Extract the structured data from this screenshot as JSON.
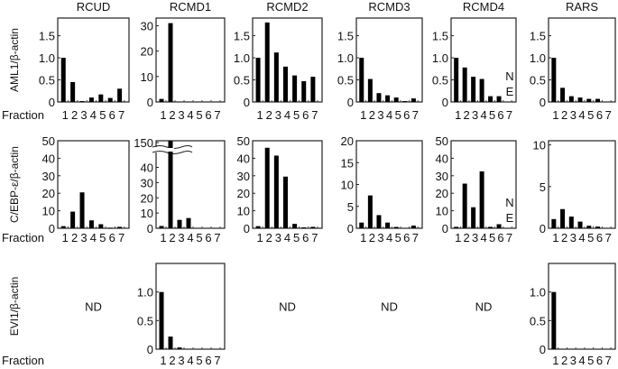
{
  "fraction_label": "Fraction",
  "columns": [
    "RCUD",
    "RCMD1",
    "RCMD2",
    "RCMD3",
    "RCMD4",
    "RARS"
  ],
  "rows": [
    "AML1/β-actin",
    "C/EBP-ε/β-actin",
    "EVI1/β-actin"
  ],
  "bar_color": "#000000",
  "chart_data": [
    {
      "type": "bar",
      "row": 0,
      "col": 0,
      "title": "RCUD",
      "ylabel": "AML1/β-actin",
      "categories": [
        "1",
        "2",
        "3",
        "4",
        "5",
        "6",
        "7"
      ],
      "values": [
        1.0,
        0.45,
        0.02,
        0.1,
        0.17,
        0.09,
        0.3
      ],
      "ylim": [
        0,
        1.9
      ],
      "yticks": [
        "0",
        "0.5",
        "1.0",
        "1.5"
      ]
    },
    {
      "type": "bar",
      "row": 0,
      "col": 1,
      "title": "RCMD1",
      "categories": [
        "1",
        "2",
        "3",
        "4",
        "5",
        "6",
        "7"
      ],
      "values": [
        1.2,
        31,
        0,
        0,
        0,
        0,
        0
      ],
      "ylim": [
        0,
        33
      ],
      "yticks": [
        "0",
        "10",
        "20",
        "30"
      ]
    },
    {
      "type": "bar",
      "row": 0,
      "col": 2,
      "title": "RCMD2",
      "categories": [
        "1",
        "2",
        "3",
        "4",
        "5",
        "6",
        "7"
      ],
      "values": [
        1.0,
        1.8,
        1.12,
        0.8,
        0.6,
        0.47,
        0.57
      ],
      "ylim": [
        0,
        1.9
      ],
      "yticks": [
        "0",
        "0.5",
        "1.0",
        "1.5"
      ]
    },
    {
      "type": "bar",
      "row": 0,
      "col": 3,
      "title": "RCMD3",
      "categories": [
        "1",
        "2",
        "3",
        "4",
        "5",
        "6",
        "7"
      ],
      "values": [
        1.0,
        0.52,
        0.2,
        0.15,
        0.1,
        0.02,
        0.08
      ],
      "ylim": [
        0,
        1.9
      ],
      "yticks": [
        "0",
        "0.5",
        "1.0",
        "1.5"
      ]
    },
    {
      "type": "bar",
      "row": 0,
      "col": 4,
      "title": "RCMD4",
      "categories": [
        "1",
        "2",
        "3",
        "4",
        "5",
        "6",
        "7"
      ],
      "values": [
        1.0,
        0.78,
        0.57,
        0.52,
        0.13,
        0.13,
        null
      ],
      "ylim": [
        0,
        1.9
      ],
      "yticks": [
        "0",
        "0.5",
        "1.0",
        "1.5"
      ],
      "annotation": [
        "N",
        "E"
      ]
    },
    {
      "type": "bar",
      "row": 0,
      "col": 5,
      "title": "RARS",
      "categories": [
        "1",
        "2",
        "3",
        "4",
        "5",
        "6",
        "7"
      ],
      "values": [
        1.0,
        0.32,
        0.13,
        0.1,
        0.07,
        0.07,
        0
      ],
      "ylim": [
        0,
        1.9
      ],
      "yticks": [
        "0",
        "0.5",
        "1.0",
        "1.5"
      ]
    },
    {
      "type": "bar",
      "row": 1,
      "col": 0,
      "ylabel": "C/EBP-ε/β-actin",
      "categories": [
        "1",
        "2",
        "3",
        "4",
        "5",
        "6",
        "7"
      ],
      "values": [
        1.2,
        9.5,
        20.5,
        4.5,
        2.3,
        0.3,
        0.8
      ],
      "ylim": [
        0,
        50
      ],
      "yticks": [
        "0",
        "10",
        "20",
        "30",
        "40",
        "50"
      ]
    },
    {
      "type": "bar",
      "row": 1,
      "col": 1,
      "categories": [
        "1",
        "2",
        "3",
        "4",
        "5",
        "6",
        "7"
      ],
      "values": [
        1.5,
        150,
        5.5,
        6.7,
        0,
        0,
        0
      ],
      "ylim": [
        0,
        150
      ],
      "axis_break": [
        45,
        145
      ],
      "yticks": [
        "0",
        "10",
        "20",
        "30",
        "40",
        "150"
      ]
    },
    {
      "type": "bar",
      "row": 1,
      "col": 2,
      "categories": [
        "1",
        "2",
        "3",
        "4",
        "5",
        "6",
        "7"
      ],
      "values": [
        1.2,
        46,
        41.5,
        29.5,
        2.5,
        0.5,
        0.8
      ],
      "ylim": [
        0,
        50
      ],
      "yticks": [
        "0",
        "10",
        "20",
        "30",
        "40",
        "50"
      ]
    },
    {
      "type": "bar",
      "row": 1,
      "col": 3,
      "categories": [
        "1",
        "2",
        "3",
        "4",
        "5",
        "6",
        "7"
      ],
      "values": [
        1.3,
        7.5,
        3,
        1.3,
        0.3,
        0,
        0.6
      ],
      "ylim": [
        0,
        20
      ],
      "yticks": [
        "0",
        "5",
        "10",
        "15",
        "20"
      ]
    },
    {
      "type": "bar",
      "row": 1,
      "col": 4,
      "categories": [
        "1",
        "2",
        "3",
        "4",
        "5",
        "6",
        "7"
      ],
      "values": [
        0.8,
        25.5,
        12,
        32.5,
        0.8,
        2.3,
        null
      ],
      "ylim": [
        0,
        50
      ],
      "yticks": [
        "0",
        "10",
        "20",
        "30",
        "40",
        "50"
      ],
      "annotation": [
        "N",
        "E"
      ]
    },
    {
      "type": "bar",
      "row": 1,
      "col": 5,
      "categories": [
        "1",
        "2",
        "3",
        "4",
        "5",
        "6",
        "7"
      ],
      "values": [
        1.1,
        2.3,
        1.4,
        0.8,
        0.3,
        0.2,
        0
      ],
      "ylim": [
        0,
        10.5
      ],
      "yticks": [
        "0",
        "5",
        "10"
      ]
    },
    {
      "type": "bar",
      "row": 2,
      "col": 0,
      "ylabel": "EVI1/β-actin",
      "not_determined": "ND"
    },
    {
      "type": "bar",
      "row": 2,
      "col": 1,
      "categories": [
        "1",
        "2",
        "3",
        "4",
        "5",
        "6",
        "7"
      ],
      "values": [
        1.0,
        0.22,
        0.03,
        0,
        0,
        0,
        0
      ],
      "ylim": [
        0,
        1.5
      ],
      "yticks": [
        "0",
        "0.5",
        "1.0"
      ]
    },
    {
      "type": "bar",
      "row": 2,
      "col": 2,
      "not_determined": "ND"
    },
    {
      "type": "bar",
      "row": 2,
      "col": 3,
      "not_determined": "ND"
    },
    {
      "type": "bar",
      "row": 2,
      "col": 4,
      "not_determined": "ND"
    },
    {
      "type": "bar",
      "row": 2,
      "col": 5,
      "categories": [
        "1",
        "2",
        "3",
        "4",
        "5",
        "6",
        "7"
      ],
      "values": [
        1.0,
        0,
        0,
        0,
        0,
        0,
        0
      ],
      "ylim": [
        0,
        1.5
      ],
      "yticks": [
        "0",
        "0.5",
        "1.0"
      ]
    }
  ]
}
